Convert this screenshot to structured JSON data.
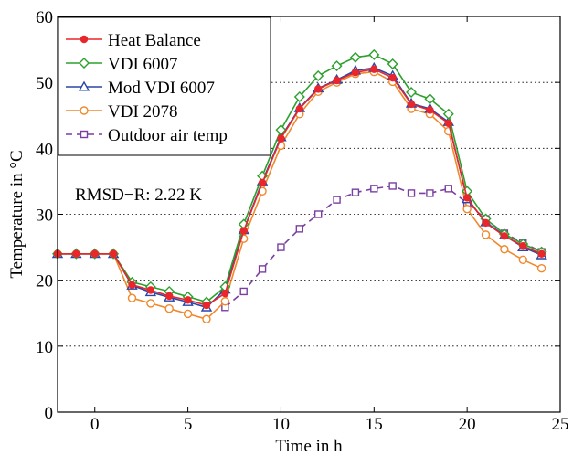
{
  "chart_data": {
    "type": "line",
    "xlabel": "Time in h",
    "ylabel": "Temperature in °C",
    "xlim": [
      -2,
      25
    ],
    "ylim": [
      0,
      60
    ],
    "xticks": [
      0,
      5,
      10,
      15,
      20,
      25
    ],
    "yticks": [
      0,
      10,
      20,
      30,
      40,
      50,
      60
    ],
    "grid": "horizontal",
    "legend_position": "top-left",
    "annotation": "RMSD−R: 2.22 K",
    "x": [
      -2,
      -1,
      0,
      1,
      2,
      3,
      4,
      5,
      6,
      7,
      8,
      9,
      10,
      11,
      12,
      13,
      14,
      15,
      16,
      17,
      18,
      19,
      20,
      21,
      22,
      23,
      24
    ],
    "series": [
      {
        "name": "Heat Balance",
        "color": "#e8262c",
        "marker": "dot",
        "dashed": false,
        "values": [
          24.0,
          24.0,
          24.0,
          24.0,
          19.3,
          18.5,
          17.6,
          17.0,
          16.2,
          18.0,
          27.5,
          34.8,
          41.5,
          46.0,
          49.0,
          50.3,
          51.5,
          52.0,
          50.7,
          46.7,
          45.8,
          43.8,
          32.5,
          28.7,
          26.7,
          25.2,
          24.0
        ]
      },
      {
        "name": "VDI 6007",
        "color": "#2ca02c",
        "marker": "diamond",
        "dashed": false,
        "values": [
          24.0,
          24.0,
          24.0,
          24.0,
          19.7,
          19.0,
          18.3,
          17.5,
          16.7,
          19.0,
          28.5,
          35.8,
          42.8,
          47.8,
          51.0,
          52.5,
          53.8,
          54.2,
          52.8,
          48.5,
          47.5,
          45.2,
          33.5,
          29.3,
          27.0,
          25.5,
          24.3
        ]
      },
      {
        "name": "Mod VDI 6007",
        "color": "#2a46a8",
        "marker": "triangle",
        "dashed": false,
        "values": [
          24.0,
          24.0,
          24.0,
          24.0,
          19.2,
          18.2,
          17.4,
          16.7,
          15.9,
          18.6,
          27.6,
          35.0,
          41.7,
          46.1,
          49.1,
          50.4,
          51.8,
          52.2,
          51.0,
          46.8,
          46.0,
          44.0,
          32.3,
          28.8,
          26.8,
          25.0,
          23.8
        ]
      },
      {
        "name": "VDI 2078",
        "color": "#f0882c",
        "marker": "circle",
        "dashed": false,
        "values": [
          24.0,
          24.0,
          24.0,
          24.0,
          17.3,
          16.5,
          15.7,
          14.9,
          14.1,
          16.8,
          26.3,
          33.5,
          40.4,
          45.2,
          48.6,
          50.0,
          51.3,
          51.6,
          50.1,
          46.0,
          45.2,
          42.6,
          30.8,
          26.9,
          24.7,
          23.1,
          21.8
        ]
      },
      {
        "name": "Outdoor air temp",
        "color": "#7b3fa0",
        "marker": "square",
        "dashed": true,
        "values": [
          null,
          null,
          null,
          null,
          null,
          null,
          null,
          null,
          null,
          15.9,
          18.3,
          21.7,
          25.0,
          27.8,
          30.0,
          32.2,
          33.3,
          33.9,
          34.3,
          33.2,
          33.2,
          33.9,
          31.7,
          29.3,
          27.1,
          25.7,
          24.3
        ]
      }
    ]
  }
}
